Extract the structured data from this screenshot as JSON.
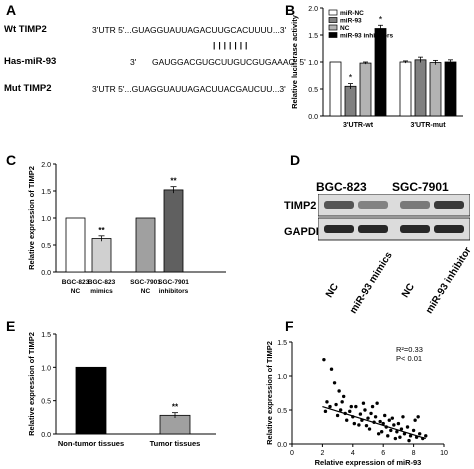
{
  "panel_labels": {
    "a": "A",
    "b": "B",
    "c": "C",
    "d": "D",
    "e": "E",
    "f": "F"
  },
  "panel_a": {
    "rows": [
      {
        "name": "Wt TIMP2",
        "seq": "3'UTR 5'...GUAGGUAUUAGACUUGCACUUUU...3'"
      },
      {
        "name": "Has-miR-93",
        "prefix": "3'",
        "seq": "GAUGGACGUGCUUGUCGUGAAAC  5'"
      },
      {
        "name": "Mut TIMP2",
        "seq": "3'UTR 5'...GUAGGUAUUAGACUUACGAUCUU...3'"
      }
    ],
    "pairing": "| | | | | | |"
  },
  "chart_data": [
    {
      "panel": "B",
      "type": "bar",
      "ylabel": "Relative luciferase activity",
      "ylim": [
        0,
        2.0
      ],
      "yticks": [
        "0.0",
        "0.5",
        "1.0",
        "1.5",
        "2.0"
      ],
      "categories": [
        "3'UTR-wt",
        "3'UTR-mut"
      ],
      "series": [
        {
          "name": "miR-NC",
          "values": [
            1.0,
            1.0
          ],
          "errors": [
            0,
            0.02
          ],
          "color": "#ffffff"
        },
        {
          "name": "miR-93",
          "values": [
            0.55,
            1.04
          ],
          "errors": [
            0.05,
            0.05
          ],
          "color": "#808080",
          "sig": [
            "*",
            ""
          ]
        },
        {
          "name": "NC",
          "values": [
            0.98,
            0.99
          ],
          "errors": [
            0.02,
            0.04
          ],
          "color": "#b3b3b3"
        },
        {
          "name": "miR-93 inhibitors",
          "values": [
            1.62,
            1.0
          ],
          "errors": [
            0.06,
            0.04
          ],
          "color": "#000000",
          "sig": [
            "*",
            ""
          ]
        }
      ],
      "legend": "top-left"
    },
    {
      "panel": "C",
      "type": "bar",
      "ylabel": "Relative expression of TIMP2",
      "ylim": [
        0,
        2.0
      ],
      "yticks": [
        "0.0",
        "0.5",
        "1.0",
        "1.5",
        "2.0"
      ],
      "categories": [
        [
          "BGC-823",
          "NC"
        ],
        [
          "BGC-823",
          "mimics"
        ],
        [
          "SGC-7901",
          "NC"
        ],
        [
          "SGC-7901",
          "inhibitors"
        ]
      ],
      "values": [
        1.0,
        0.62,
        1.0,
        1.52
      ],
      "errors": [
        0,
        0.05,
        0,
        0.06
      ],
      "colors": [
        "#ffffff",
        "#d0d0d0",
        "#a0a0a0",
        "#606060"
      ],
      "sig": [
        "",
        "**",
        "",
        "**"
      ]
    },
    {
      "panel": "E",
      "type": "bar",
      "ylabel": "Relative expression of TIMP2",
      "ylim": [
        0,
        1.5
      ],
      "yticks": [
        "0.0",
        "0.5",
        "1.0",
        "1.5"
      ],
      "categories": [
        "Non-tumor tissues",
        "Tumor tissues"
      ],
      "values": [
        1.0,
        0.28
      ],
      "errors": [
        0,
        0.04
      ],
      "colors": [
        "#000000",
        "#a0a0a0"
      ],
      "sig": [
        "",
        "**"
      ]
    },
    {
      "panel": "F",
      "type": "scatter",
      "xlabel": "Relative expression of miR-93",
      "ylabel": "Relative expression of TIMP2",
      "xlim": [
        0,
        10
      ],
      "ylim": [
        0,
        1.5
      ],
      "xticks": [
        "0",
        "2",
        "4",
        "6",
        "8",
        "10"
      ],
      "yticks": [
        "0.0",
        "0.5",
        "1.0",
        "1.5"
      ],
      "annotation": [
        "R²=0.33",
        "P< 0.01"
      ],
      "fit": {
        "x0": 2.0,
        "y0": 0.55,
        "x1": 8.8,
        "y1": 0.08
      },
      "points": [
        [
          2.1,
          1.24
        ],
        [
          2.6,
          1.1
        ],
        [
          2.8,
          0.9
        ],
        [
          3.1,
          0.78
        ],
        [
          3.4,
          0.7
        ],
        [
          2.3,
          0.62
        ],
        [
          2.5,
          0.55
        ],
        [
          2.9,
          0.58
        ],
        [
          3.2,
          0.5
        ],
        [
          3.5,
          0.45
        ],
        [
          3.0,
          0.42
        ],
        [
          3.8,
          0.48
        ],
        [
          4.0,
          0.4
        ],
        [
          4.2,
          0.55
        ],
        [
          4.5,
          0.44
        ],
        [
          4.6,
          0.35
        ],
        [
          4.8,
          0.5
        ],
        [
          5.0,
          0.38
        ],
        [
          5.2,
          0.45
        ],
        [
          5.4,
          0.32
        ],
        [
          5.5,
          0.4
        ],
        [
          5.6,
          0.6
        ],
        [
          5.8,
          0.33
        ],
        [
          6.0,
          0.3
        ],
        [
          6.1,
          0.42
        ],
        [
          6.2,
          0.25
        ],
        [
          6.4,
          0.35
        ],
        [
          6.5,
          0.2
        ],
        [
          6.7,
          0.28
        ],
        [
          6.9,
          0.18
        ],
        [
          7.0,
          0.3
        ],
        [
          7.2,
          0.22
        ],
        [
          7.4,
          0.15
        ],
        [
          7.6,
          0.25
        ],
        [
          7.8,
          0.12
        ],
        [
          8.0,
          0.2
        ],
        [
          8.2,
          0.1
        ],
        [
          8.4,
          0.15
        ],
        [
          8.6,
          0.08
        ],
        [
          8.8,
          0.12
        ],
        [
          3.6,
          0.35
        ],
        [
          4.4,
          0.28
        ],
        [
          5.1,
          0.22
        ],
        [
          5.9,
          0.18
        ],
        [
          6.3,
          0.12
        ],
        [
          7.1,
          0.1
        ],
        [
          3.3,
          0.62
        ],
        [
          4.1,
          0.3
        ],
        [
          4.9,
          0.27
        ],
        [
          5.3,
          0.55
        ],
        [
          6.6,
          0.38
        ],
        [
          7.3,
          0.4
        ],
        [
          8.1,
          0.35
        ],
        [
          5.7,
          0.15
        ],
        [
          4.7,
          0.6
        ],
        [
          3.9,
          0.55
        ],
        [
          6.8,
          0.08
        ],
        [
          7.7,
          0.05
        ],
        [
          8.3,
          0.4
        ],
        [
          2.2,
          0.48
        ]
      ]
    }
  ],
  "panel_d": {
    "col_headers": [
      "BGC-823",
      "SGC-7901"
    ],
    "rows": [
      "TIMP2",
      "GAPDH"
    ],
    "lane_labels": [
      "NC",
      "miR-93 mimics",
      "NC",
      "miR-93 inhibitor"
    ],
    "timp2_intensity": [
      0.75,
      0.5,
      0.55,
      0.9
    ],
    "gapdh_intensity": [
      0.9,
      0.9,
      0.9,
      0.9
    ]
  }
}
